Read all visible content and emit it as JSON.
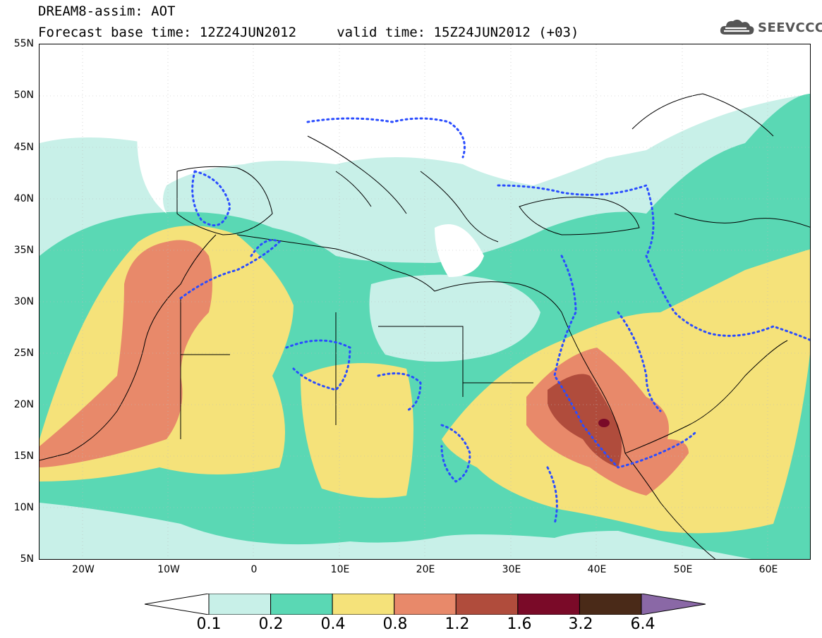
{
  "header": {
    "title_line1": "DREAM8-assim: AOT",
    "title_line2": "Forecast base time: 12Z24JUN2012     valid time: 15Z24JUN2012 (+03)",
    "logo_text": "SEEVCCC"
  },
  "axes": {
    "lat_ticks": [
      "55N",
      "50N",
      "45N",
      "40N",
      "35N",
      "30N",
      "25N",
      "20N",
      "15N",
      "10N",
      "5N"
    ],
    "lon_ticks": [
      "20W",
      "10W",
      "0",
      "10E",
      "20E",
      "30E",
      "40E",
      "50E",
      "60E"
    ]
  },
  "legend": {
    "levels": [
      "0.1",
      "0.2",
      "0.4",
      "0.8",
      "1.2",
      "1.6",
      "3.2",
      "6.4"
    ],
    "colors": [
      "#ffffff",
      "#c8f0e8",
      "#5ad8b4",
      "#f5e27a",
      "#e8896a",
      "#b04c3c",
      "#7a0a28",
      "#4a2a18",
      "#8a68a6"
    ]
  },
  "map_colors": {
    "dotted_contour": "#2a4cff",
    "coastline": "#000000"
  }
}
